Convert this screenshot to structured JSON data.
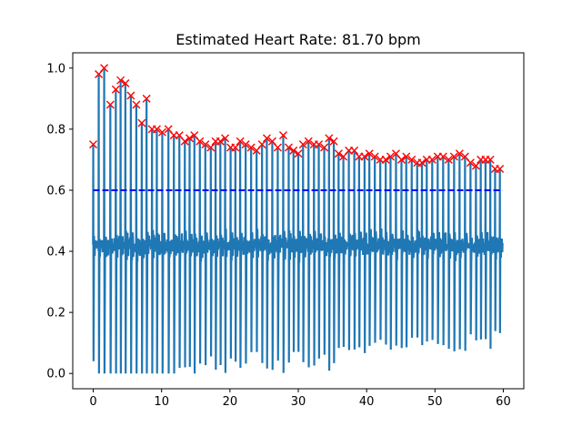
{
  "chart_data": {
    "type": "line",
    "title": "Estimated Heart Rate: 81.70 bpm",
    "xlabel": "",
    "ylabel": "",
    "xlim": [
      -3.0,
      63.0
    ],
    "ylim": [
      -0.05,
      1.05
    ],
    "x_ticks": [
      0,
      10,
      20,
      30,
      40,
      50,
      60
    ],
    "y_ticks": [
      0.0,
      0.2,
      0.4,
      0.6,
      0.8,
      1.0
    ],
    "x_tick_labels": [
      "0",
      "10",
      "20",
      "30",
      "40",
      "50",
      "60"
    ],
    "y_tick_labels": [
      "0.0",
      "0.2",
      "0.4",
      "0.6",
      "0.8",
      "1.0"
    ],
    "grid": false,
    "threshold": {
      "value": 0.6,
      "style": "dashed",
      "color": "#0000ff"
    },
    "signal": {
      "color": "#1f77b4",
      "baseline": 0.42,
      "t_end": 59.9
    },
    "series": [
      {
        "marker": "x",
        "color": "#ff0000",
        "points": [
          [
            0.0,
            0.75
          ],
          [
            0.8,
            0.98
          ],
          [
            1.6,
            1.0
          ],
          [
            2.5,
            0.88
          ],
          [
            3.3,
            0.93
          ],
          [
            4.0,
            0.96
          ],
          [
            4.7,
            0.95
          ],
          [
            5.5,
            0.91
          ],
          [
            6.3,
            0.88
          ],
          [
            7.1,
            0.82
          ],
          [
            7.8,
            0.9
          ],
          [
            8.6,
            0.8
          ],
          [
            9.3,
            0.8
          ],
          [
            10.1,
            0.79
          ],
          [
            11.0,
            0.8
          ],
          [
            11.8,
            0.78
          ],
          [
            12.6,
            0.78
          ],
          [
            13.4,
            0.76
          ],
          [
            14.1,
            0.77
          ],
          [
            14.8,
            0.78
          ],
          [
            15.6,
            0.76
          ],
          [
            16.4,
            0.75
          ],
          [
            17.2,
            0.74
          ],
          [
            17.9,
            0.76
          ],
          [
            18.6,
            0.76
          ],
          [
            19.3,
            0.77
          ],
          [
            20.1,
            0.74
          ],
          [
            20.8,
            0.74
          ],
          [
            21.5,
            0.76
          ],
          [
            22.3,
            0.75
          ],
          [
            23.1,
            0.74
          ],
          [
            23.9,
            0.73
          ],
          [
            24.7,
            0.75
          ],
          [
            25.4,
            0.77
          ],
          [
            26.2,
            0.76
          ],
          [
            27.0,
            0.74
          ],
          [
            27.8,
            0.78
          ],
          [
            28.6,
            0.74
          ],
          [
            29.3,
            0.73
          ],
          [
            30.0,
            0.72
          ],
          [
            30.7,
            0.75
          ],
          [
            31.5,
            0.76
          ],
          [
            32.3,
            0.75
          ],
          [
            33.0,
            0.75
          ],
          [
            33.8,
            0.74
          ],
          [
            34.5,
            0.77
          ],
          [
            35.2,
            0.76
          ],
          [
            35.9,
            0.72
          ],
          [
            36.6,
            0.71
          ],
          [
            37.4,
            0.73
          ],
          [
            38.2,
            0.73
          ],
          [
            38.9,
            0.71
          ],
          [
            39.7,
            0.71
          ],
          [
            40.4,
            0.72
          ],
          [
            41.2,
            0.71
          ],
          [
            42.0,
            0.7
          ],
          [
            42.8,
            0.7
          ],
          [
            43.5,
            0.71
          ],
          [
            44.3,
            0.72
          ],
          [
            45.1,
            0.7
          ],
          [
            45.8,
            0.71
          ],
          [
            46.6,
            0.7
          ],
          [
            47.4,
            0.69
          ],
          [
            48.1,
            0.69
          ],
          [
            48.8,
            0.7
          ],
          [
            49.6,
            0.7
          ],
          [
            50.4,
            0.71
          ],
          [
            51.2,
            0.71
          ],
          [
            52.0,
            0.7
          ],
          [
            52.8,
            0.71
          ],
          [
            53.6,
            0.72
          ],
          [
            54.4,
            0.71
          ],
          [
            55.2,
            0.69
          ],
          [
            56.0,
            0.68
          ],
          [
            56.7,
            0.7
          ],
          [
            57.4,
            0.7
          ],
          [
            58.1,
            0.7
          ],
          [
            58.8,
            0.67
          ],
          [
            59.5,
            0.67
          ]
        ]
      }
    ]
  }
}
